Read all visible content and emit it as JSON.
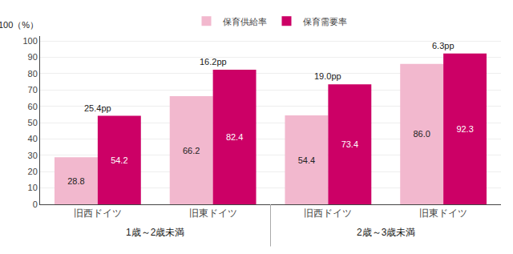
{
  "chart_data": {
    "type": "bar",
    "ylabel": "100（%）",
    "categories": [
      "旧西ドイツ",
      "旧東ドイツ",
      "旧西ドイツ",
      "旧東ドイツ"
    ],
    "category_groups": [
      "1歳～2歳未満",
      "1歳～2歳未満",
      "2歳～3歳未満",
      "2歳～3歳未満"
    ],
    "series": [
      {
        "name": "保育供給率",
        "color": "#f2b8ce",
        "values": [
          28.8,
          66.2,
          54.4,
          86.0
        ],
        "value_labels": [
          "28.8",
          "66.2",
          "54.4",
          "86.0"
        ]
      },
      {
        "name": "保育需要率",
        "color": "#cc0066",
        "values": [
          54.2,
          82.4,
          73.4,
          92.3
        ],
        "value_labels": [
          "54.2",
          "82.4",
          "73.4",
          "92.3"
        ]
      }
    ],
    "annotations": [
      "25.4pp",
      "16.2pp",
      "19.0pp",
      "6.3pp"
    ],
    "ylim": [
      0,
      103
    ],
    "yticks": [
      0,
      10,
      20,
      30,
      40,
      50,
      60,
      70,
      80,
      90,
      100
    ],
    "grid": true,
    "legend": "upper center",
    "data_labels": true
  }
}
